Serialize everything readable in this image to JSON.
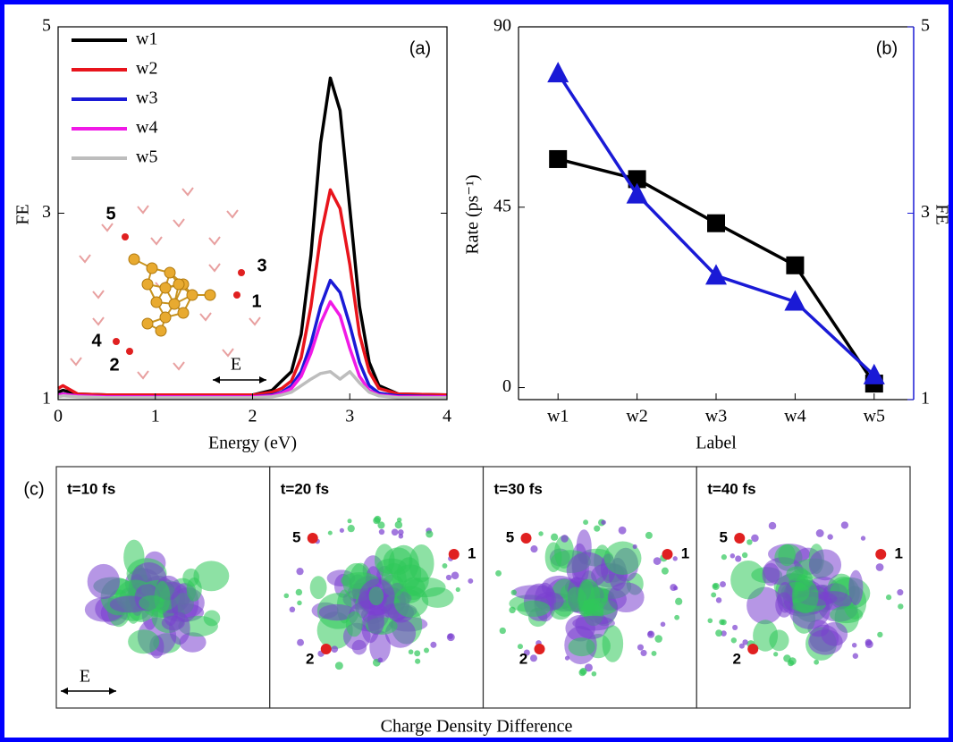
{
  "chart_data": [
    {
      "type": "line",
      "panel_label": "(a)",
      "ylabel": "FE",
      "xlabel": "Energy (eV)",
      "x": [
        0,
        0.05,
        0.2,
        0.5,
        1,
        1.5,
        2,
        2.2,
        2.3,
        2.4,
        2.5,
        2.6,
        2.7,
        2.8,
        2.9,
        3,
        3.1,
        3.2,
        3.3,
        3.5,
        4
      ],
      "series": [
        {
          "name": "w1",
          "color": "#000000",
          "values": [
            1.08,
            1.1,
            1.06,
            1.05,
            1.05,
            1.05,
            1.05,
            1.1,
            1.2,
            1.3,
            1.7,
            2.55,
            3.75,
            4.45,
            4.1,
            3.05,
            2.0,
            1.4,
            1.15,
            1.06,
            1.05
          ]
        },
        {
          "name": "w2",
          "color": "#e8141c",
          "values": [
            1.12,
            1.15,
            1.06,
            1.05,
            1.05,
            1.05,
            1.05,
            1.08,
            1.12,
            1.2,
            1.45,
            2.0,
            2.75,
            3.25,
            3.05,
            2.45,
            1.7,
            1.3,
            1.12,
            1.06,
            1.05
          ]
        },
        {
          "name": "w3",
          "color": "#1a1ad6",
          "values": [
            1.05,
            1.06,
            1.04,
            1.03,
            1.03,
            1.03,
            1.03,
            1.05,
            1.08,
            1.15,
            1.3,
            1.6,
            2.0,
            2.28,
            2.15,
            1.8,
            1.4,
            1.15,
            1.07,
            1.04,
            1.03
          ]
        },
        {
          "name": "w4",
          "color": "#f019e6",
          "values": [
            1.05,
            1.06,
            1.04,
            1.03,
            1.03,
            1.03,
            1.03,
            1.04,
            1.07,
            1.12,
            1.25,
            1.5,
            1.82,
            2.05,
            1.9,
            1.55,
            1.25,
            1.1,
            1.05,
            1.03,
            1.03
          ]
        },
        {
          "name": "w5",
          "color": "#bdbdbd",
          "values": [
            1.03,
            1.04,
            1.03,
            1.02,
            1.02,
            1.02,
            1.02,
            1.03,
            1.05,
            1.08,
            1.15,
            1.22,
            1.28,
            1.3,
            1.22,
            1.3,
            1.18,
            1.08,
            1.04,
            1.02,
            1.02
          ]
        }
      ],
      "xlim": [
        0,
        4
      ],
      "xticks": [
        0,
        1,
        2,
        3,
        4
      ],
      "ylim": [
        1,
        5
      ],
      "yticks": [
        1,
        3,
        5
      ],
      "legend": "upper-left",
      "inset_labels": [
        "5",
        "3",
        "1",
        "4",
        "2"
      ],
      "arrow_label": "E"
    },
    {
      "type": "line",
      "panel_label": "(b)",
      "ylabel": "Rate (ps⁻¹)",
      "y2label": "FE",
      "xlabel": "Label",
      "categories": [
        "w1",
        "w2",
        "w3",
        "w4",
        "w5"
      ],
      "series": [
        {
          "color": "#000000",
          "marker": "square",
          "values": [
            57,
            52,
            41,
            30.5,
            1
          ]
        },
        {
          "color": "#1a1ad6",
          "marker": "triangle",
          "axis": "y2",
          "values": [
            4.5,
            3.2,
            2.33,
            2.05,
            1.26
          ]
        }
      ],
      "ylim": [
        -3,
        90
      ],
      "yticks": [
        0,
        45,
        90
      ],
      "y2lim": [
        1,
        5
      ],
      "y2ticks": [
        1,
        3,
        5
      ]
    }
  ],
  "panel_c": {
    "label": "(c)",
    "caption": "Charge Density Difference",
    "arrow_label": "E",
    "frames": [
      {
        "title": "t=10 fs"
      },
      {
        "title": "t=20 fs",
        "labels": [
          "5",
          "1",
          "2"
        ]
      },
      {
        "title": "t=30 fs",
        "labels": [
          "5",
          "1",
          "2"
        ]
      },
      {
        "title": "t=40 fs",
        "labels": [
          "5",
          "1",
          "2"
        ]
      }
    ]
  }
}
